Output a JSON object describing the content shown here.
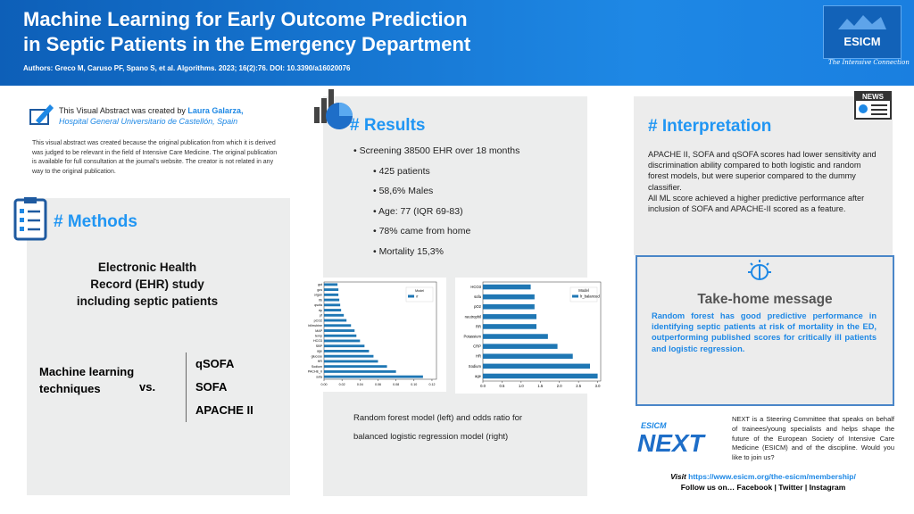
{
  "header": {
    "title": [
      "Machine Learning for Early Outcome Prediction",
      "in Septic Patients in the Emergency Department"
    ],
    "authors": "Authors: Greco M, Caruso PF, Spano S, et al. Algorithms. 2023; 16(2):76. DOI: 10.3390/a16020076",
    "logo": "ESICM",
    "tagline": "The Intensive Connection"
  },
  "creator": {
    "prefix": "This Visual Abstract was created by",
    "name": "Laura Galarza,",
    "institution": "Hospital General Universitario de Castellón, Spain",
    "note": "This visual abstract was created because the original publication from which it is derived was judged to be relevant in the field of Intensive Care Medicine. The original publication is available for full consultation at the journal's website. The creator is not related in any way to the original publication."
  },
  "methods": {
    "heading": "# Methods",
    "study": [
      "Electronic Health",
      "Record (EHR) study",
      "including septic patients"
    ],
    "ml": [
      "Machine learning",
      "techniques"
    ],
    "vs": "vs.",
    "scores": [
      "qSOFA",
      "SOFA",
      "APACHE II"
    ]
  },
  "results": {
    "heading": "# Results",
    "screening": "Screening  38500 EHR over 18 months",
    "items": [
      "425 patients",
      "58,6% Males",
      "Age: 77 (IQR 69-83)",
      "78% came from home",
      "Mortality 15,3%"
    ],
    "caption": [
      "Random forest model (left) and odds ratio for",
      "balanced logistic regression model (right)"
    ]
  },
  "charts": [
    {
      "type": "bar",
      "orientation": "horizontal",
      "legend_title": "Model",
      "categories": [
        "gst",
        "gcs",
        "organ",
        "fib",
        "qsofa",
        "rtp",
        "pf",
        "pCO2",
        "bilirrubine",
        "MAP",
        "temp",
        "HCO3",
        "SBP",
        "age",
        "glucose",
        "HR",
        "Sodium",
        "APACHE_II",
        "sofa"
      ],
      "series": [
        {
          "name": "rf",
          "color": "#1f77b4",
          "values": [
            0.015,
            0.016,
            0.016,
            0.017,
            0.018,
            0.019,
            0.022,
            0.025,
            0.03,
            0.034,
            0.036,
            0.04,
            0.045,
            0.05,
            0.055,
            0.06,
            0.07,
            0.08,
            0.11
          ]
        }
      ],
      "xlim": [
        0,
        0.125
      ],
      "xticks": [
        {
          "value": 0,
          "label": "0.00"
        },
        0.02,
        0.04,
        0.06,
        0.08,
        {
          "value": 0.1,
          "label": "0.10"
        },
        0.12
      ]
    },
    {
      "type": "bar",
      "orientation": "horizontal",
      "legend_title": "Model",
      "categories": [
        "HCO3",
        "sofa",
        "pO2",
        "neutrophil",
        "RR",
        "Potassium",
        "CRP",
        "HR",
        "Sodium",
        "age"
      ],
      "series": [
        {
          "name": "lr_balanced",
          "color": "#1f77b4",
          "values": [
            1.25,
            1.35,
            1.35,
            1.4,
            1.4,
            1.7,
            1.95,
            2.35,
            2.8,
            3.0
          ]
        }
      ],
      "xlim": [
        0,
        3.08
      ],
      "xticks": [
        {
          "value": 0,
          "label": "0.0"
        },
        0.5,
        {
          "value": 1,
          "label": "1.0"
        },
        1.5,
        {
          "value": 2,
          "label": "2.0"
        },
        2.5,
        {
          "value": 3,
          "label": "3.0"
        }
      ]
    }
  ],
  "interpretation": {
    "heading": "# Interpretation",
    "icon": "NEWS",
    "paragraphs": [
      "APACHE II, SOFA and qSOFA scores had lower sensitivity and discrimination ability compared to both logistic and random forest models, but were superior compared to the dummy classifier.",
      "All ML score achieved a higher predictive performance after inclusion of SOFA and APACHE-II scored as a feature."
    ]
  },
  "takehome": {
    "heading": "Take-home message",
    "text": "Random forest has good predictive performance in identifying septic patients  at risk of mortality in the ED, outperforming published scores for critically ill patients and logistic regression."
  },
  "next": {
    "logo_top": "ESICM",
    "logo": "NEXT",
    "text": "NEXT is a Steering Committee that speaks on behalf of trainees/young specialists and helps shape the future of the European Society of Intensive Care Medicine (ESICM) and of the discipline. Would you like to join us?",
    "visit": "Visit",
    "url": "https://www.esicm.org/the-esicm/membership/",
    "follow": "Follow us on… Facebook | Twitter | Instagram"
  }
}
